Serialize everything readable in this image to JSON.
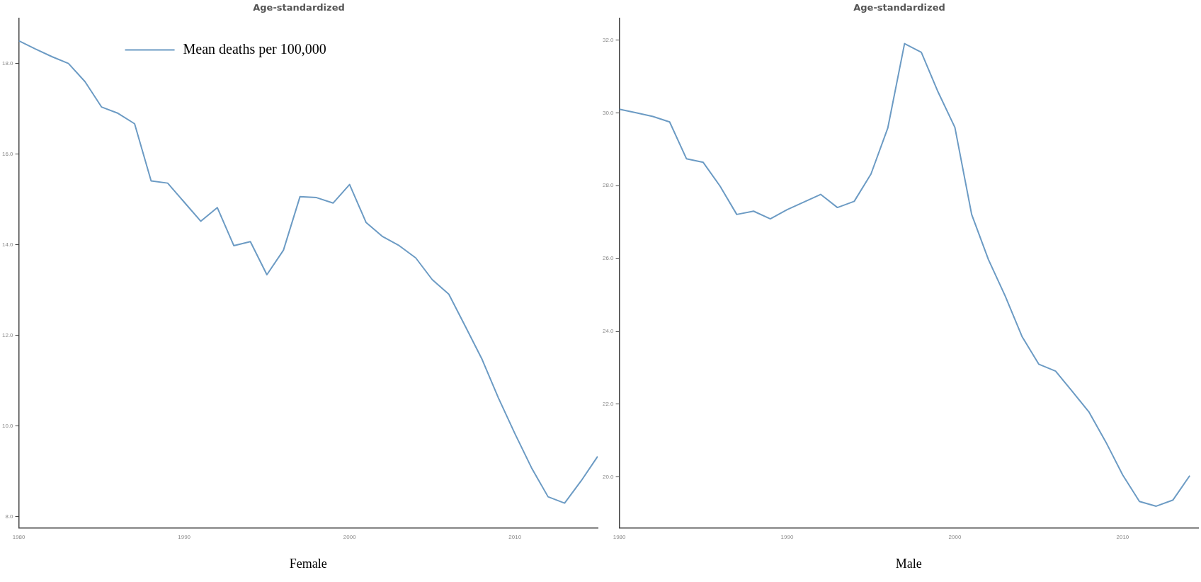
{
  "chart_data": [
    {
      "type": "line",
      "title": "Age-standardized",
      "xlabel": "Female",
      "x": [
        1980,
        1981,
        1982,
        1983,
        1984,
        1985,
        1986,
        1987,
        1988,
        1989,
        1990,
        1991,
        1992,
        1993,
        1994,
        1995,
        1996,
        1997,
        1998,
        1999,
        2000,
        2001,
        2002,
        2003,
        2004,
        2005,
        2006,
        2007,
        2008,
        2009,
        2010,
        2011,
        2012,
        2013,
        2014,
        2015
      ],
      "series": [
        {
          "name": "Mean deaths per 100,000",
          "color": "#6c9bc4",
          "values": [
            18.5,
            18.32,
            18.15,
            18.0,
            17.6,
            17.04,
            16.9,
            16.67,
            15.41,
            15.36,
            14.94,
            14.52,
            14.82,
            13.98,
            14.07,
            13.34,
            13.88,
            15.06,
            15.04,
            14.92,
            15.33,
            14.49,
            14.18,
            13.98,
            13.71,
            13.23,
            12.91,
            12.2,
            11.48,
            10.62,
            9.83,
            9.08,
            8.44,
            8.3,
            8.79,
            9.33
          ]
        }
      ],
      "xlim": [
        1980,
        2015
      ],
      "xticks": [
        1980,
        1990,
        2000,
        2010
      ],
      "ylim": [
        7.75,
        19
      ],
      "yticks": [
        {
          "value": 8,
          "label": "8.0"
        },
        {
          "value": 10,
          "label": "10.0"
        },
        {
          "value": 12,
          "label": "12.0"
        },
        {
          "value": 14,
          "label": "14.0"
        },
        {
          "value": 16,
          "label": "16.0"
        },
        {
          "value": 18,
          "label": "18.0"
        }
      ],
      "grid": false,
      "legend": "top left",
      "marker": "none",
      "line_style": "solid"
    },
    {
      "type": "line",
      "title": "Age-standardized",
      "xlabel": "Male",
      "x": [
        1980,
        1981,
        1982,
        1983,
        1984,
        1985,
        1986,
        1987,
        1988,
        1989,
        1990,
        1991,
        1992,
        1993,
        1994,
        1995,
        1996,
        1997,
        1998,
        1999,
        2000,
        2001,
        2002,
        2003,
        2004,
        2005,
        2006,
        2007,
        2008,
        2009,
        2010,
        2011,
        2012,
        2013,
        2014
      ],
      "series": [
        {
          "color": "#6c9bc4",
          "values": [
            30.1,
            30.0,
            29.9,
            29.75,
            28.74,
            28.64,
            27.99,
            27.21,
            27.3,
            27.09,
            27.34,
            27.55,
            27.76,
            27.4,
            27.57,
            28.32,
            29.58,
            31.9,
            31.66,
            30.57,
            29.6,
            27.21,
            25.97,
            24.97,
            23.86,
            23.1,
            22.91,
            22.35,
            21.78,
            20.96,
            20.06,
            19.33,
            19.2,
            19.37,
            20.04
          ]
        }
      ],
      "xlim": [
        1980,
        2014.5
      ],
      "xticks": [
        1980,
        1990,
        2000,
        2010
      ],
      "ylim": [
        18.6,
        32.6
      ],
      "yticks": [
        {
          "value": 20,
          "label": "20.0"
        },
        {
          "value": 22,
          "label": "22.0"
        },
        {
          "value": 24,
          "label": "24.0"
        },
        {
          "value": 26,
          "label": "26.0"
        },
        {
          "value": 28,
          "label": "28.0"
        },
        {
          "value": 30,
          "label": "30.0"
        },
        {
          "value": 32,
          "label": "32.0"
        }
      ],
      "grid": false,
      "marker": "none",
      "line_style": "solid"
    }
  ]
}
